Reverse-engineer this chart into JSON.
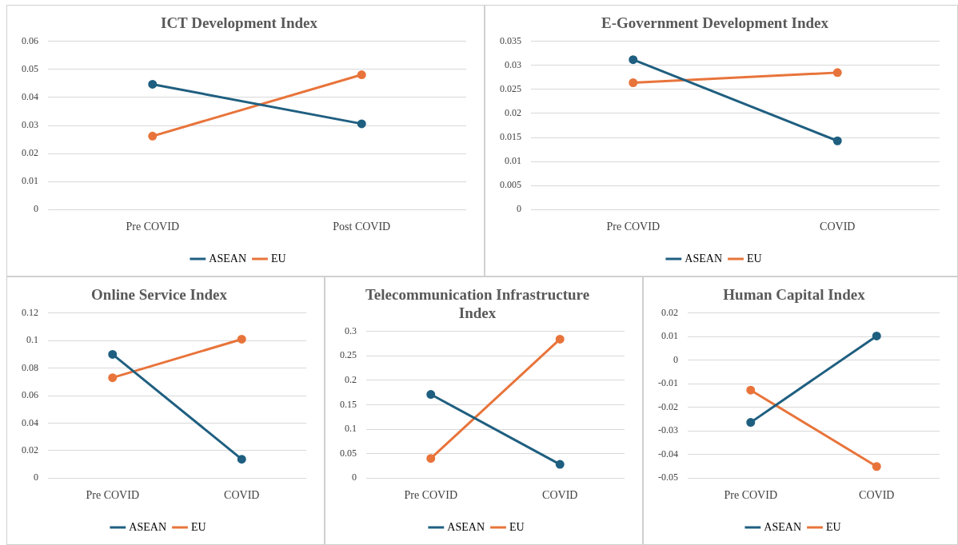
{
  "chart_data": [
    {
      "type": "line",
      "title": "ICT Development Index",
      "categories": [
        "Pre COVID",
        "Post COVID"
      ],
      "series": [
        {
          "name": "ASEAN",
          "color": "#1f5f80",
          "values": [
            0.0447,
            0.0306
          ]
        },
        {
          "name": "EU",
          "color": "#e8743b",
          "values": [
            0.0262,
            0.0481
          ]
        }
      ],
      "ylim": [
        0,
        0.06
      ],
      "yticks": [
        0,
        0.01,
        0.02,
        0.03,
        0.04,
        0.05,
        0.06
      ],
      "grid": "y",
      "legend": "bottom",
      "marker": "circle",
      "line_style": "solid"
    },
    {
      "type": "line",
      "title": "E-Government Development Index",
      "categories": [
        "Pre COVID",
        "COVID"
      ],
      "series": [
        {
          "name": "ASEAN",
          "color": "#1f5f80",
          "values": [
            0.0312,
            0.0143
          ]
        },
        {
          "name": "EU",
          "color": "#e8743b",
          "values": [
            0.0264,
            0.0285
          ]
        }
      ],
      "ylim": [
        0,
        0.035
      ],
      "yticks": [
        0,
        0.005,
        0.01,
        0.015,
        0.02,
        0.025,
        0.03,
        0.035
      ],
      "grid": "y",
      "legend": "bottom",
      "marker": "circle",
      "line_style": "solid"
    },
    {
      "type": "line",
      "title": "Online Service Index",
      "categories": [
        "Pre COVID",
        "COVID"
      ],
      "series": [
        {
          "name": "ASEAN",
          "color": "#1f5f80",
          "values": [
            0.09,
            0.0137
          ]
        },
        {
          "name": "EU",
          "color": "#e8743b",
          "values": [
            0.073,
            0.101
          ]
        }
      ],
      "ylim": [
        0,
        0.12
      ],
      "yticks": [
        0,
        0.02,
        0.04,
        0.06,
        0.08,
        0.1,
        0.12
      ],
      "grid": "y",
      "legend": "bottom",
      "marker": "circle",
      "line_style": "solid"
    },
    {
      "type": "line",
      "title": "Telecommunication Infrastructure Index",
      "categories": [
        "Pre COVID",
        "COVID"
      ],
      "series": [
        {
          "name": "ASEAN",
          "color": "#1f5f80",
          "values": [
            0.171,
            0.028
          ]
        },
        {
          "name": "EU",
          "color": "#e8743b",
          "values": [
            0.04,
            0.284
          ]
        }
      ],
      "ylim": [
        0,
        0.3
      ],
      "yticks": [
        0,
        0.05,
        0.1,
        0.15,
        0.2,
        0.25,
        0.3
      ],
      "grid": "y",
      "legend": "bottom",
      "marker": "circle",
      "line_style": "solid"
    },
    {
      "type": "line",
      "title": "Human Capital Index",
      "categories": [
        "Pre COVID",
        "COVID"
      ],
      "series": [
        {
          "name": "ASEAN",
          "color": "#1f5f80",
          "values": [
            -0.0264,
            0.0103
          ]
        },
        {
          "name": "EU",
          "color": "#e8743b",
          "values": [
            -0.0127,
            -0.0451
          ]
        }
      ],
      "ylim": [
        -0.05,
        0.02
      ],
      "yticks": [
        -0.05,
        -0.04,
        -0.03,
        -0.02,
        -0.01,
        0,
        0.01,
        0.02
      ],
      "grid": "y",
      "legend": "bottom",
      "marker": "circle",
      "line_style": "solid"
    }
  ]
}
